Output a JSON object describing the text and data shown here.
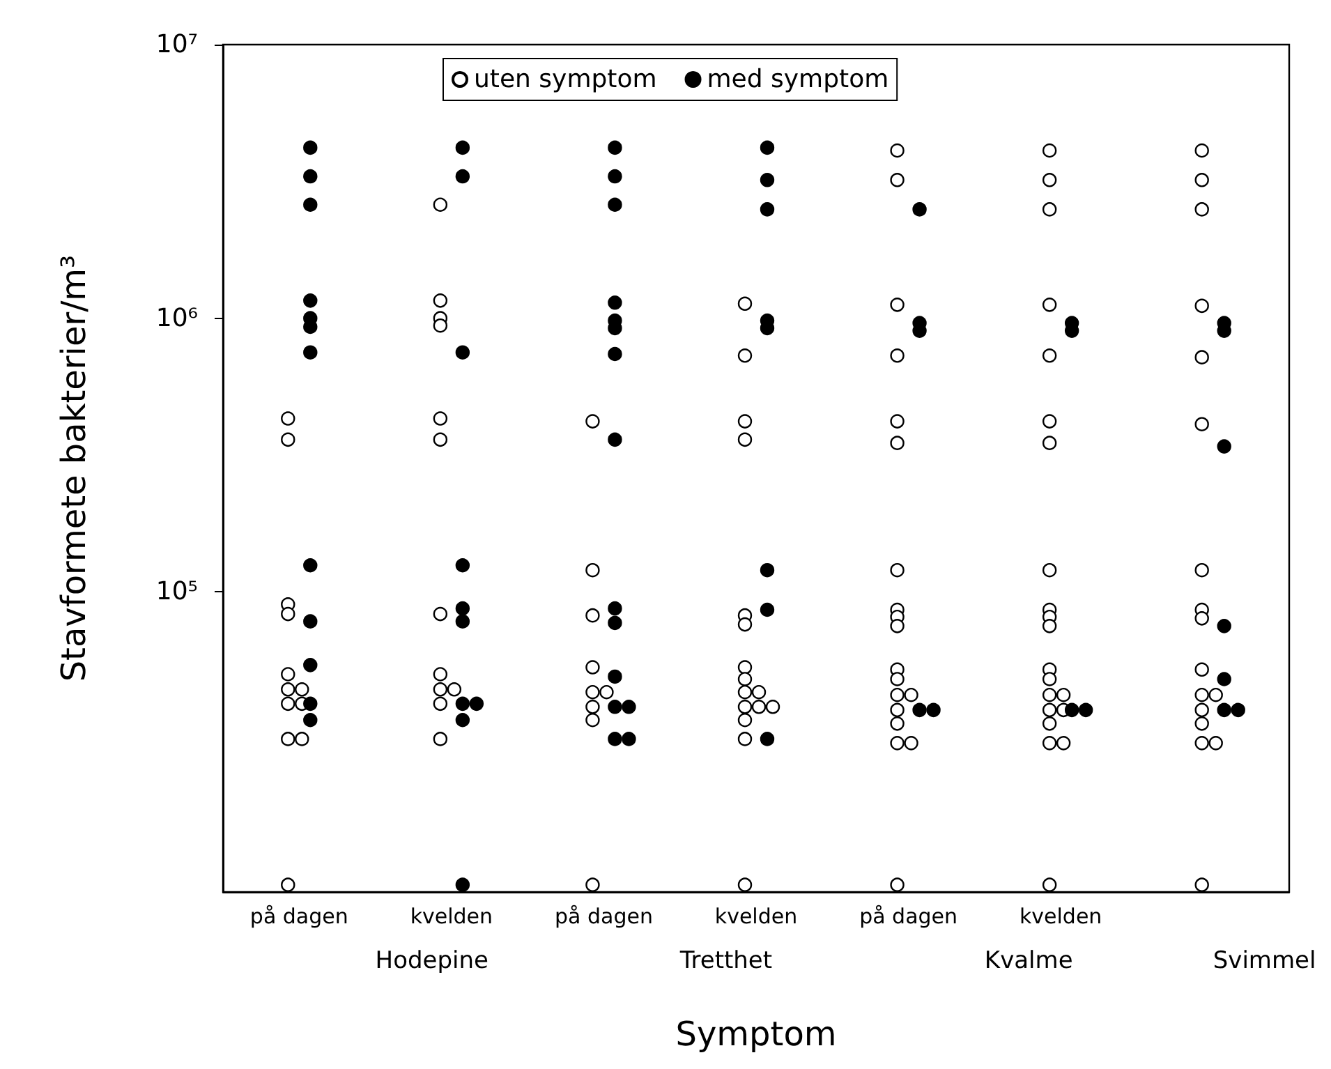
{
  "chart_data": {
    "type": "scatter",
    "xlabel": "Symptom",
    "ylabel": "Stavformete bakterier/m³",
    "categories": [
      "på dagen",
      "kvelden",
      "på dagen",
      "kvelden",
      "på dagen",
      "kvelden",
      null
    ],
    "annotations": [
      "Hodepine",
      "Tretthet",
      "Kvalme",
      "Svimmel"
    ],
    "log": true,
    "ylim": [
      8000,
      10000000
    ],
    "yticks": [
      {
        "value": 100000,
        "label": "10⁵"
      },
      {
        "value": 1000000,
        "label": "10⁶"
      },
      {
        "value": 10000000,
        "label": "10⁷"
      }
    ],
    "grid": false,
    "legend": "top",
    "marker": "circle",
    "series": [
      {
        "name": "uten symptom",
        "color": "#ffffff",
        "values": [
          430000,
          2600000,
          420000,
          1130000,
          4100000,
          4100000,
          4100000
        ]
      },
      {
        "color": "#ffffff",
        "values": [
          360000,
          1160000,
          120000,
          730000,
          3200000,
          3200000,
          3200000
        ]
      },
      {
        "color": "#ffffff",
        "values": [
          90000,
          1000000,
          82000,
          420000,
          1120000,
          2500000,
          2500000
        ]
      },
      {
        "color": "#ffffff",
        "values": [
          83000,
          940000,
          53000,
          360000,
          730000,
          1120000,
          1110000
        ]
      },
      {
        "color": "#ffffff",
        "values": [
          50000,
          430000,
          43000,
          82000,
          420000,
          730000,
          720000
        ]
      },
      {
        "color": "#ffffff",
        "values": [
          44000,
          360000,
          43000,
          76000,
          350000,
          420000,
          410000
        ]
      },
      {
        "color": "#ffffff",
        "values": [
          44000,
          83000,
          38000,
          53000,
          120000,
          350000,
          120000
        ]
      },
      {
        "color": "#ffffff",
        "values": [
          39000,
          50000,
          34000,
          48000,
          86000,
          120000,
          86000
        ]
      },
      {
        "color": "#ffffff",
        "values": [
          39000,
          44000,
          8500,
          43000,
          81000,
          86000,
          80000
        ]
      },
      {
        "color": "#ffffff",
        "values": [
          29000,
          44000,
          null,
          43000,
          75000,
          81000,
          52000
        ]
      },
      {
        "color": "#ffffff",
        "values": [
          29000,
          39000,
          null,
          38000,
          52000,
          75000,
          42000
        ]
      },
      {
        "color": "#ffffff",
        "values": [
          8500,
          29000,
          null,
          38000,
          48000,
          52000,
          42000
        ]
      },
      {
        "color": "#ffffff",
        "values": [
          null,
          null,
          null,
          38000,
          42000,
          48000,
          37000
        ]
      },
      {
        "color": "#ffffff",
        "values": [
          null,
          null,
          null,
          34000,
          42000,
          42000,
          33000
        ]
      },
      {
        "color": "#ffffff",
        "values": [
          null,
          null,
          null,
          29000,
          37000,
          42000,
          28000
        ]
      },
      {
        "color": "#ffffff",
        "values": [
          null,
          null,
          null,
          8500,
          33000,
          37000,
          28000
        ]
      },
      {
        "color": "#ffffff",
        "values": [
          null,
          null,
          null,
          null,
          28000,
          37000,
          8500
        ]
      },
      {
        "color": "#ffffff",
        "values": [
          null,
          null,
          null,
          null,
          28000,
          33000,
          null
        ]
      },
      {
        "color": "#ffffff",
        "values": [
          null,
          null,
          null,
          null,
          8500,
          28000,
          null
        ]
      },
      {
        "color": "#ffffff",
        "values": [
          null,
          null,
          null,
          null,
          null,
          28000,
          null
        ]
      },
      {
        "color": "#ffffff",
        "values": [
          null,
          null,
          null,
          null,
          null,
          8500,
          null
        ]
      },
      {
        "name": "med symptom",
        "color": "#000000",
        "values": [
          4200000,
          4200000,
          4200000,
          4200000,
          2500000,
          960000,
          960000
        ]
      },
      {
        "color": "#000000",
        "values": [
          3300000,
          3300000,
          3300000,
          3200000,
          960000,
          900000,
          900000
        ]
      },
      {
        "color": "#000000",
        "values": [
          2600000,
          750000,
          2600000,
          2500000,
          900000,
          37000,
          340000
        ]
      },
      {
        "color": "#000000",
        "values": [
          1160000,
          125000,
          1140000,
          980000,
          37000,
          37000,
          75000
        ]
      },
      {
        "color": "#000000",
        "values": [
          1000000,
          87000,
          980000,
          920000,
          37000,
          null,
          48000
        ]
      },
      {
        "color": "#000000",
        "values": [
          930000,
          78000,
          920000,
          120000,
          null,
          null,
          37000
        ]
      },
      {
        "color": "#000000",
        "values": [
          750000,
          39000,
          740000,
          86000,
          null,
          null,
          37000
        ]
      },
      {
        "color": "#000000",
        "values": [
          125000,
          39000,
          360000,
          29000,
          null,
          null,
          null
        ]
      },
      {
        "color": "#000000",
        "values": [
          78000,
          34000,
          87000,
          null,
          null,
          null,
          null
        ]
      },
      {
        "color": "#000000",
        "values": [
          54000,
          8500,
          77000,
          null,
          null,
          null,
          null
        ]
      },
      {
        "color": "#000000",
        "values": [
          39000,
          null,
          49000,
          null,
          null,
          null,
          null
        ]
      },
      {
        "color": "#000000",
        "values": [
          34000,
          null,
          38000,
          null,
          null,
          null,
          null
        ]
      },
      {
        "color": "#000000",
        "values": [
          null,
          null,
          38000,
          null,
          null,
          null,
          null
        ]
      },
      {
        "color": "#000000",
        "values": [
          null,
          null,
          29000,
          null,
          null,
          null,
          null
        ]
      },
      {
        "color": "#000000",
        "values": [
          null,
          null,
          29000,
          null,
          null,
          null,
          null
        ]
      }
    ]
  }
}
